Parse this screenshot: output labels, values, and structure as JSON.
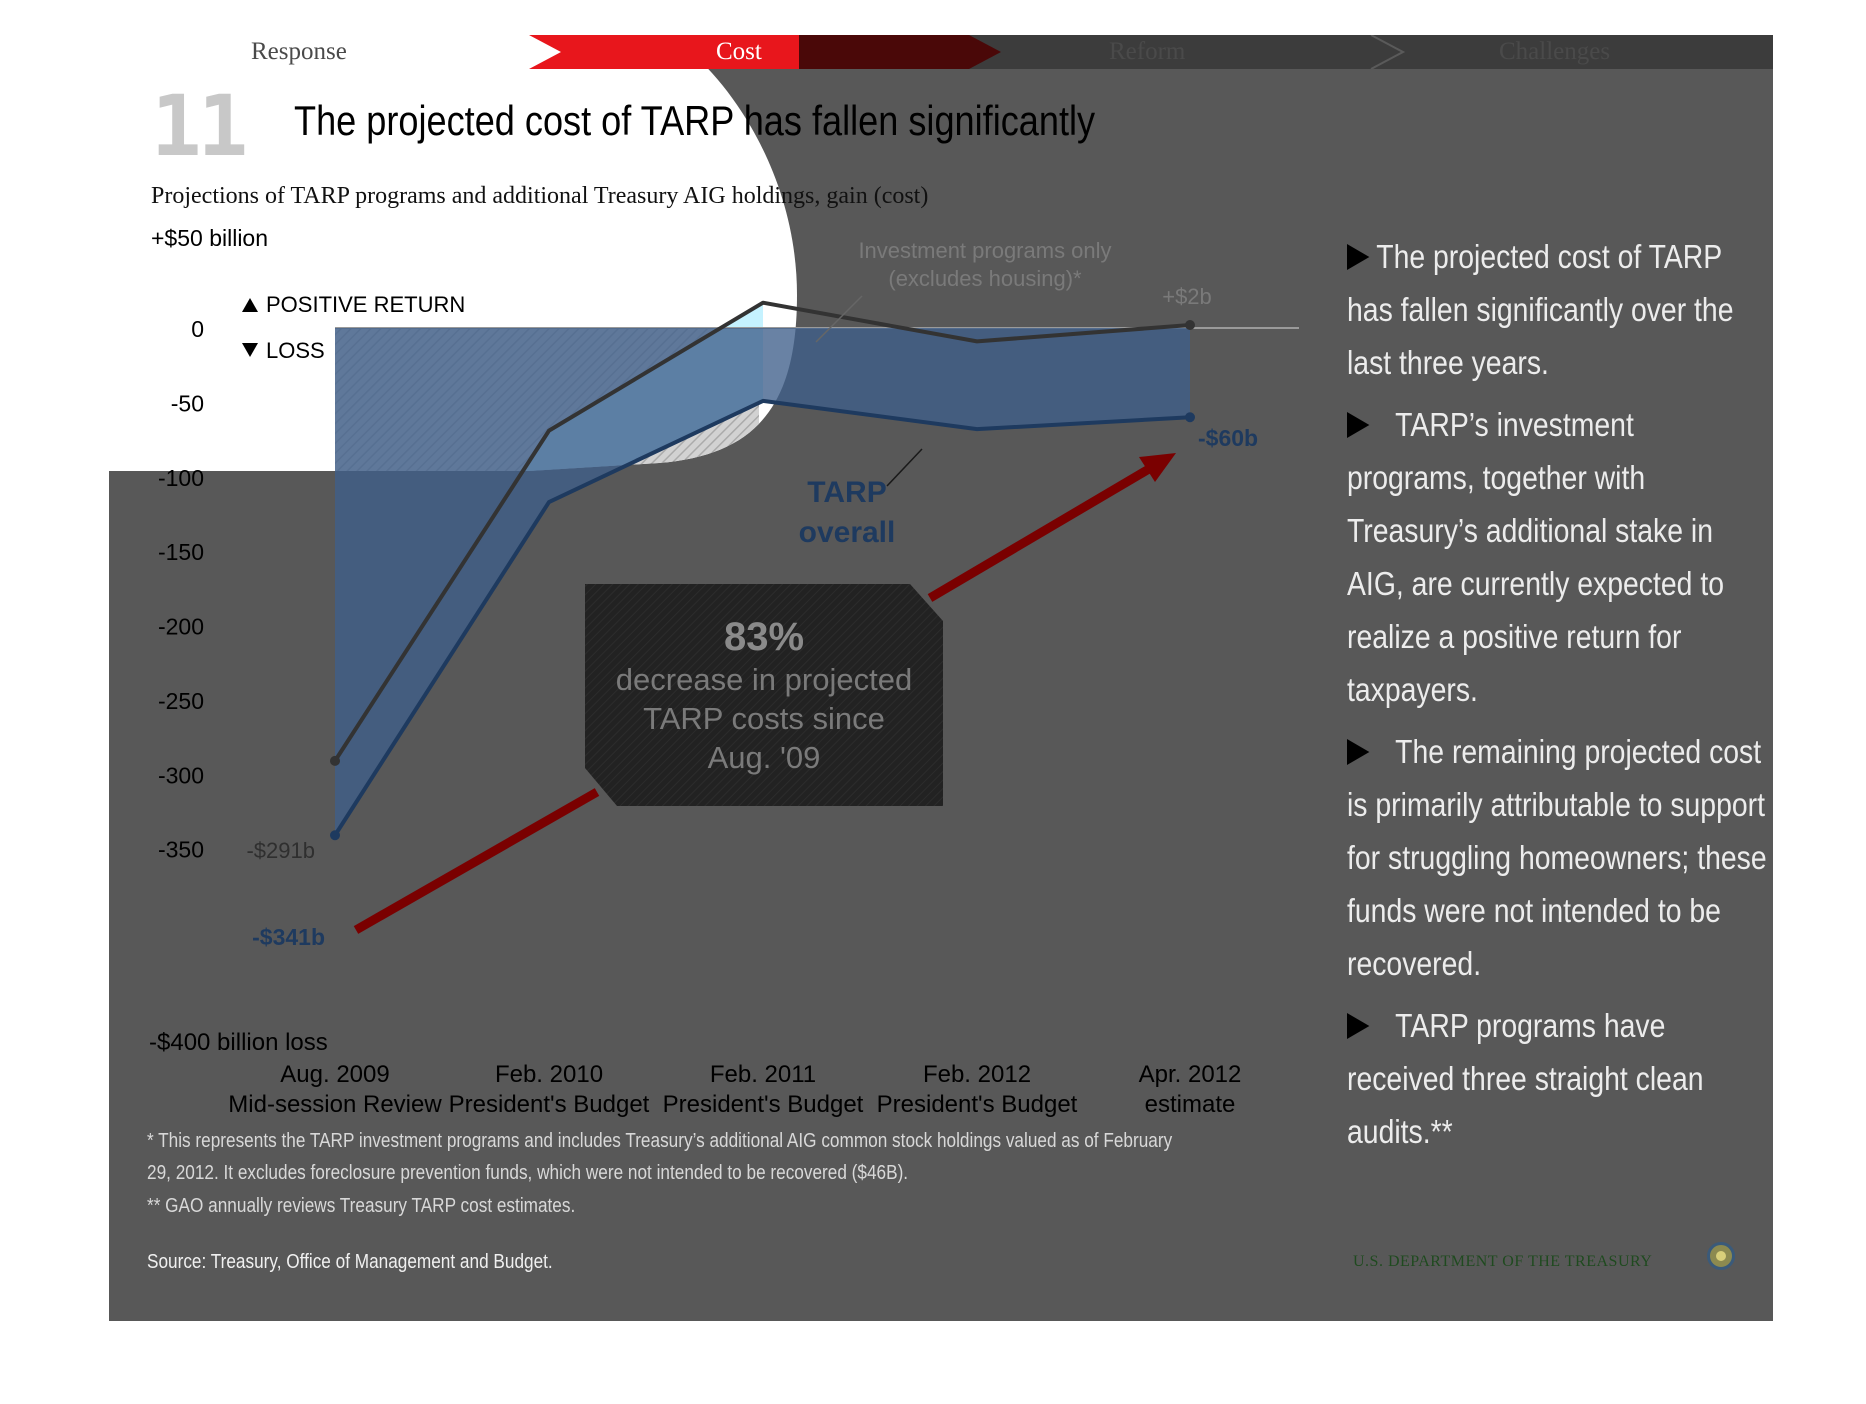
{
  "nav": {
    "items": [
      "Response",
      "Cost",
      "Reform",
      "Challenges"
    ],
    "active": "Cost"
  },
  "header": {
    "number": "11",
    "title": "The projected cost of TARP has fallen significantly",
    "subtitle": "Projections of TARP programs and additional Treasury AIG holdings, gain (cost)"
  },
  "chart_data": {
    "type": "area",
    "categories": [
      "Aug. 2009\nMid-session Review",
      "Feb. 2010\nPresident's Budget",
      "Feb. 2011\nPresident's Budget",
      "Feb. 2012\nPresident's Budget",
      "Apr. 2012\nestimate"
    ],
    "ylim": [
      -400,
      50
    ],
    "y_ticks": [
      0,
      -50,
      -100,
      -150,
      -200,
      -250,
      -300,
      -350
    ],
    "y_top_label": "+$50 billion",
    "y_bottom_label": "-$400 billion loss",
    "legend": [
      "POSITIVE RETURN",
      "LOSS"
    ],
    "series": [
      {
        "name": "Investment programs only (excludes housing)*",
        "values": [
          -291,
          -69,
          17,
          -9,
          2
        ],
        "color": "#3a3a3a"
      },
      {
        "name": "TARP overall",
        "values": [
          -341,
          -117,
          -49,
          -68,
          -60
        ],
        "color": "#1e3a5f"
      }
    ],
    "callouts": {
      "investment_label": [
        "Investment programs only",
        "(excludes housing)*"
      ],
      "tarp_label": [
        "TARP",
        "overall"
      ],
      "inv_start": "-$291b",
      "inv_end": "+$2b",
      "tarp_start": "-$341b",
      "tarp_end": "-$60b"
    },
    "box": {
      "value": "83%",
      "lines": [
        "decrease in projected",
        "TARP costs since",
        "Aug. '09"
      ]
    }
  },
  "sidebar": [
    "The projected cost of TARP has fallen significantly over the last three years.",
    "TARP’s investment programs, together with Treasury’s additional stake in AIG,  are currently expected to realize a positive return for taxpayers.",
    "The remaining projected cost is primarily attributable to support for struggling homeowners; these funds were not intended to be recovered.",
    "TARP programs have received three straight clean audits.**"
  ],
  "footnotes": {
    "note1_line1": "* This represents the TARP investment programs and includes Treasury’s additional AIG common stock holdings valued as of February",
    "note1_line2": "29, 2012. It excludes foreclosure prevention funds, which were not intended to be recovered ($46B).",
    "note2": "** GAO annually reviews Treasury TARP cost estimates.",
    "source": "Source: Treasury, Office of Management and Budget."
  },
  "brand": "U.S. DEPARTMENT OF THE TREASURY",
  "colors": {
    "red": "#e8161c",
    "navy": "#1e3a5f",
    "arrow": "#7a0000",
    "light_blue": "#c5f2ff"
  }
}
